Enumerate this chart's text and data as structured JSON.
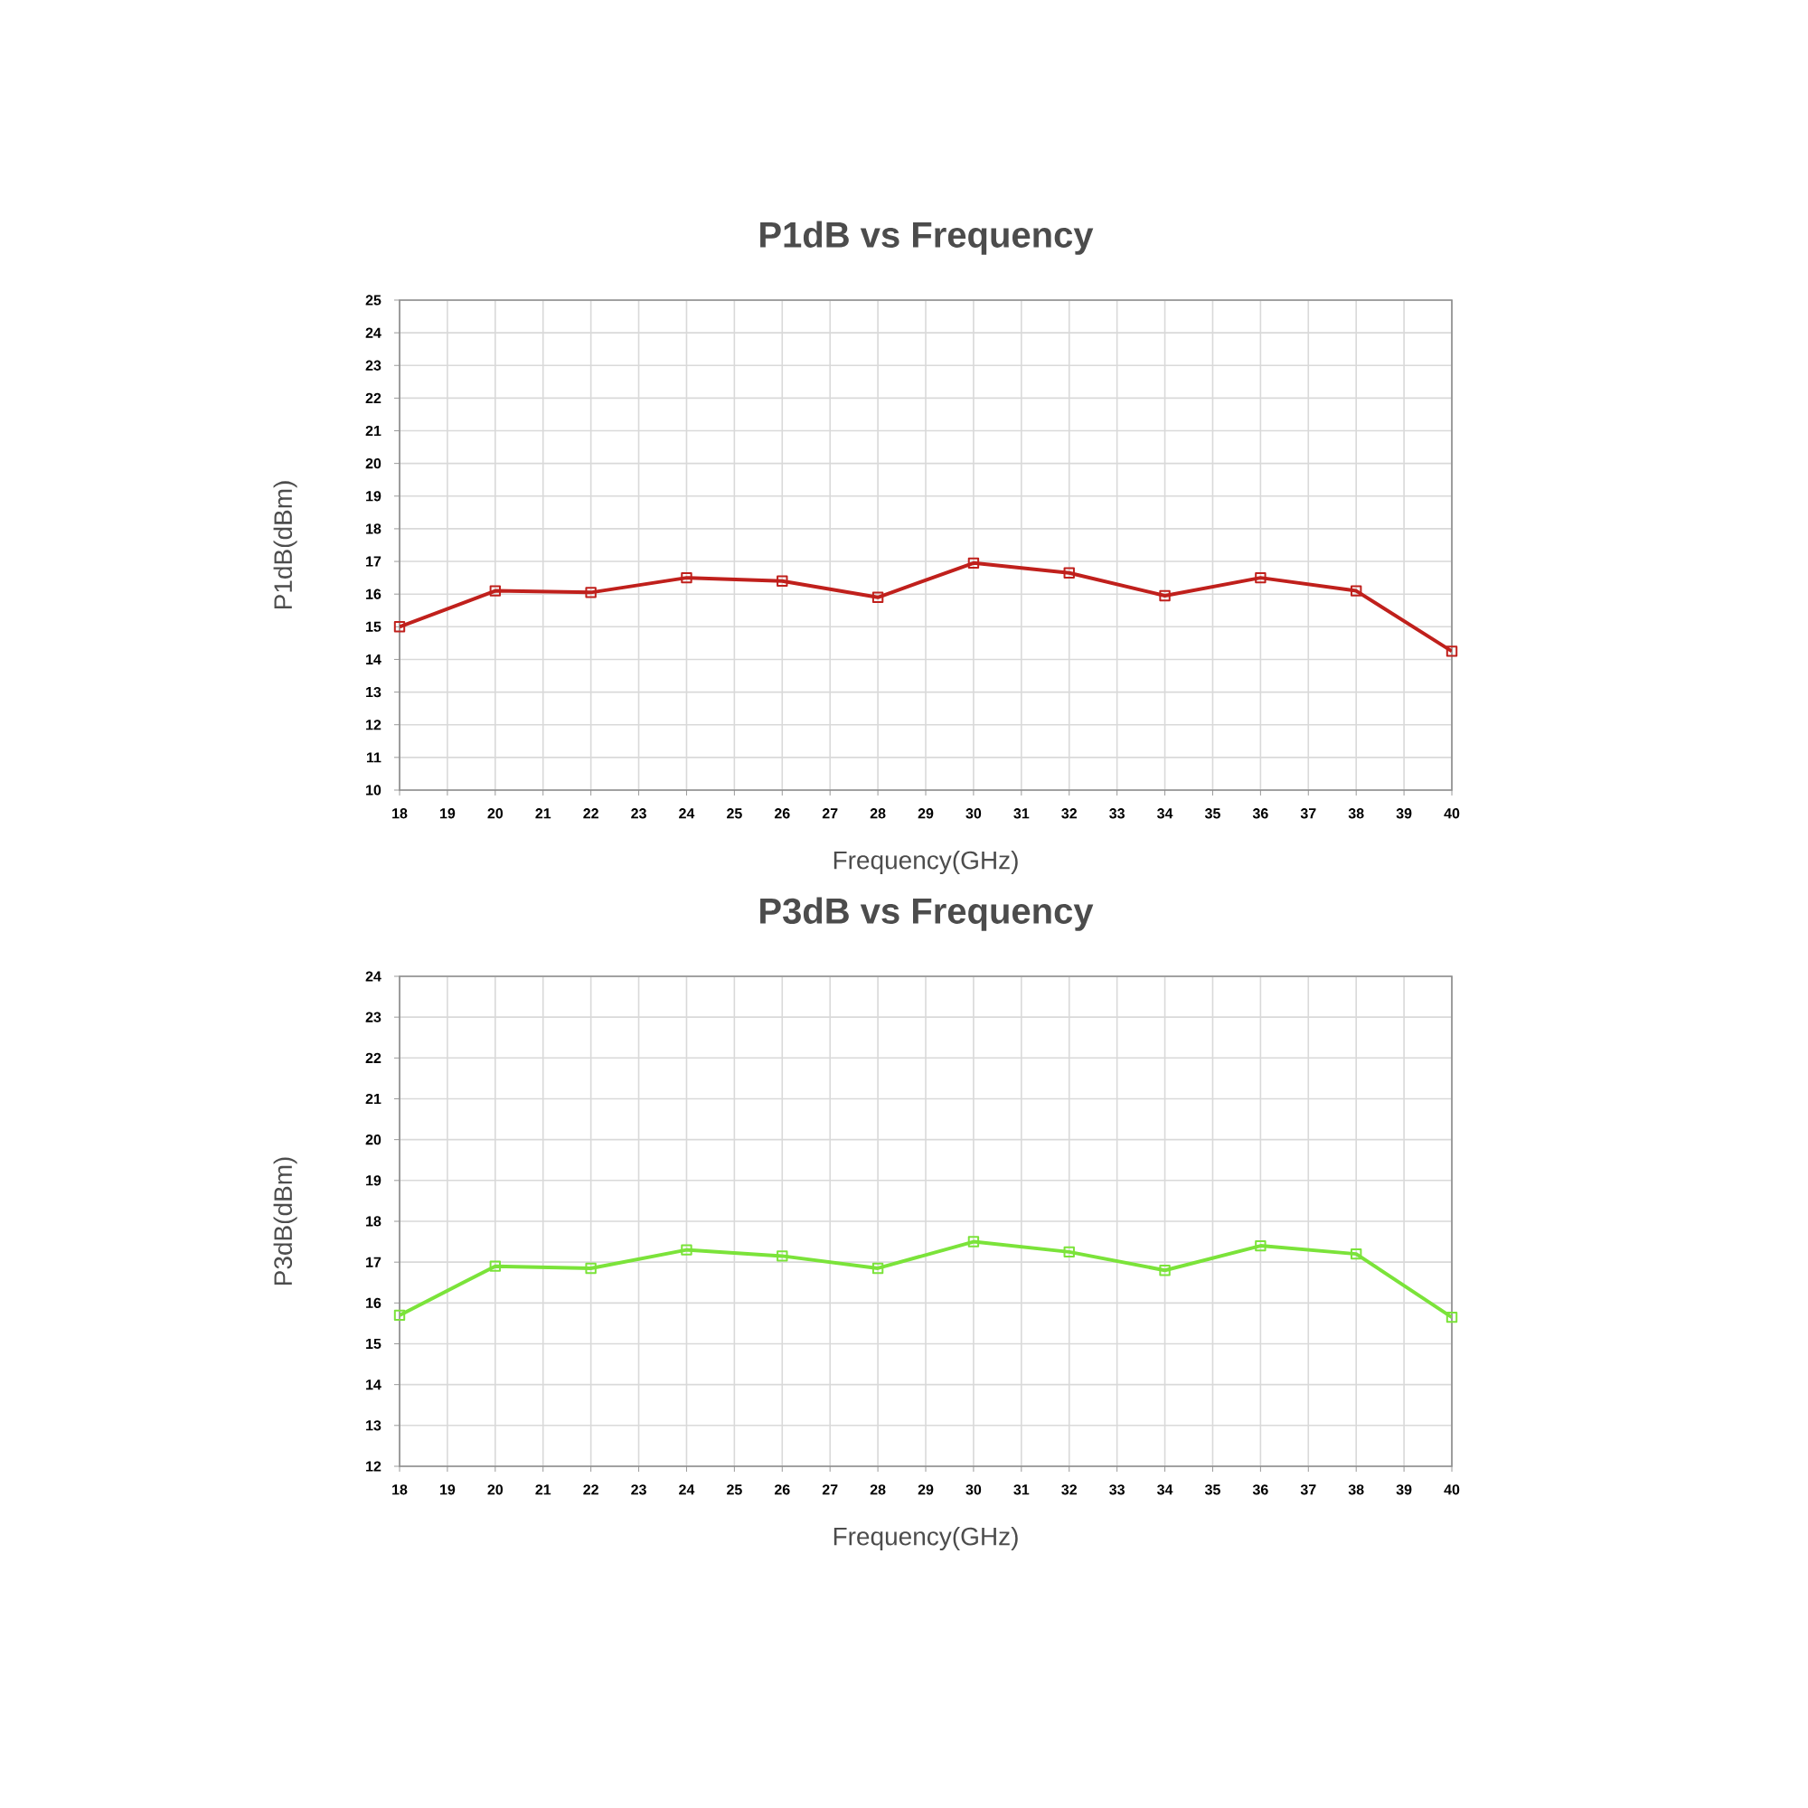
{
  "chart_data": [
    {
      "type": "line",
      "title": "P1dB vs Frequency",
      "xlabel": "Frequency(GHz)",
      "ylabel": "P1dB(dBm)",
      "x": [
        18,
        20,
        22,
        24,
        26,
        28,
        30,
        32,
        34,
        36,
        38,
        40
      ],
      "series": [
        {
          "color": "#c0201c",
          "values": [
            15.0,
            16.1,
            16.05,
            16.5,
            16.4,
            15.9,
            16.95,
            16.65,
            15.95,
            16.5,
            16.1,
            14.25
          ]
        }
      ],
      "xlim": [
        18,
        40
      ],
      "xticks": [
        18,
        19,
        20,
        21,
        22,
        23,
        24,
        25,
        26,
        27,
        28,
        29,
        30,
        31,
        32,
        33,
        34,
        35,
        36,
        37,
        38,
        39,
        40
      ],
      "ylim": [
        10,
        25
      ],
      "yticks": [
        10,
        11,
        12,
        13,
        14,
        15,
        16,
        17,
        18,
        19,
        20,
        21,
        22,
        23,
        24,
        25
      ],
      "grid": true,
      "legend": false,
      "marker": "square",
      "line_style": "solid"
    },
    {
      "type": "line",
      "title": "P3dB vs Frequency",
      "xlabel": "Frequency(GHz)",
      "ylabel": "P3dB(dBm)",
      "x": [
        18,
        20,
        22,
        24,
        26,
        28,
        30,
        32,
        34,
        36,
        38,
        40
      ],
      "series": [
        {
          "color": "#7be33a",
          "values": [
            15.7,
            16.9,
            16.85,
            17.3,
            17.15,
            16.85,
            17.5,
            17.25,
            16.8,
            17.4,
            17.2,
            15.65
          ]
        }
      ],
      "xlim": [
        18,
        40
      ],
      "xticks": [
        18,
        19,
        20,
        21,
        22,
        23,
        24,
        25,
        26,
        27,
        28,
        29,
        30,
        31,
        32,
        33,
        34,
        35,
        36,
        37,
        38,
        39,
        40
      ],
      "ylim": [
        12,
        24
      ],
      "yticks": [
        12,
        13,
        14,
        15,
        16,
        17,
        18,
        19,
        20,
        21,
        22,
        23,
        24
      ],
      "grid": true,
      "legend": false,
      "marker": "square",
      "line_style": "solid"
    }
  ]
}
